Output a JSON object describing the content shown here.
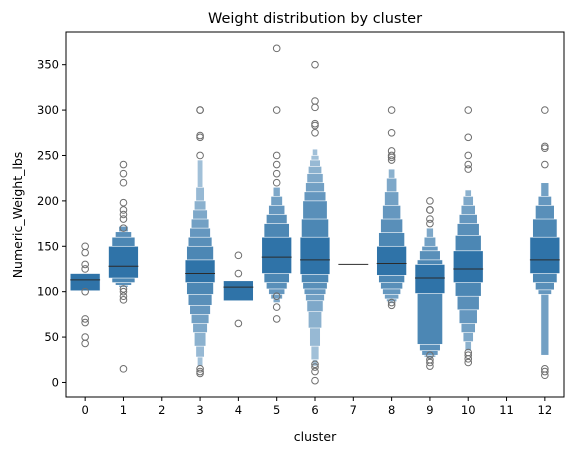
{
  "chart_data": {
    "type": "boxen",
    "title": "Weight distribution by cluster",
    "xlabel": "cluster",
    "ylabel": "Numeric_Weight_lbs",
    "categories": [
      "0",
      "1",
      "2",
      "3",
      "4",
      "5",
      "6",
      "7",
      "8",
      "9",
      "10",
      "11",
      "12"
    ],
    "ylim": [
      -16,
      386
    ],
    "yticks": [
      0,
      50,
      100,
      150,
      200,
      250,
      300,
      350
    ],
    "grid": false,
    "color": "#2f73a8",
    "outlier_color": "#6e6e6e",
    "series": [
      {
        "category": "0",
        "median": 113,
        "levels": [
          [
            101,
            120
          ]
        ],
        "outliers": [
          150,
          143,
          130,
          125,
          100,
          70,
          66,
          50,
          43
        ]
      },
      {
        "category": "1",
        "median": 128,
        "levels": [
          [
            115,
            150
          ],
          [
            110,
            160
          ],
          [
            107,
            166
          ],
          [
            105,
            172
          ]
        ],
        "outliers": [
          240,
          230,
          220,
          198,
          190,
          185,
          180,
          170,
          103,
          100,
          95,
          91,
          15
        ]
      },
      {
        "category": "2",
        "median": null,
        "levels": [],
        "outliers": []
      },
      {
        "category": "3",
        "median": 120,
        "levels": [
          [
            110,
            135
          ],
          [
            97,
            150
          ],
          [
            85,
            160
          ],
          [
            75,
            170
          ],
          [
            65,
            180
          ],
          [
            55,
            190
          ],
          [
            40,
            200
          ],
          [
            28,
            215
          ],
          [
            18,
            245
          ]
        ],
        "outliers": [
          300,
          300,
          272,
          270,
          250,
          15,
          12,
          10
        ]
      },
      {
        "category": "4",
        "median": 105,
        "levels": [
          [
            90,
            112
          ]
        ],
        "outliers": [
          140,
          120,
          65
        ]
      },
      {
        "category": "5",
        "median": 138,
        "levels": [
          [
            120,
            160
          ],
          [
            110,
            175
          ],
          [
            103,
            185
          ],
          [
            97,
            195
          ],
          [
            92,
            205
          ],
          [
            88,
            215
          ]
        ],
        "outliers": [
          368,
          300,
          250,
          240,
          230,
          220,
          95,
          83,
          70
        ]
      },
      {
        "category": "6",
        "median": 135,
        "levels": [
          [
            119,
            160
          ],
          [
            110,
            180
          ],
          [
            103,
            200
          ],
          [
            97,
            210
          ],
          [
            90,
            220
          ],
          [
            78,
            230
          ],
          [
            60,
            238
          ],
          [
            40,
            245
          ],
          [
            25,
            250
          ],
          [
            18,
            257
          ]
        ],
        "outliers": [
          350,
          310,
          303,
          285,
          283,
          275,
          20,
          17,
          12,
          2
        ]
      },
      {
        "category": "7",
        "median": 130,
        "levels": [],
        "outliers": []
      },
      {
        "category": "8",
        "median": 131,
        "levels": [
          [
            118,
            150
          ],
          [
            110,
            165
          ],
          [
            103,
            180
          ],
          [
            97,
            195
          ],
          [
            92,
            210
          ],
          [
            89,
            225
          ],
          [
            87,
            235
          ]
        ],
        "outliers": [
          300,
          275,
          255,
          250,
          248,
          245,
          88,
          85
        ]
      },
      {
        "category": "9",
        "median": 115,
        "levels": [
          [
            98,
            130
          ],
          [
            42,
            135
          ],
          [
            35,
            145
          ],
          [
            30,
            150
          ],
          [
            28,
            160
          ],
          [
            26,
            170
          ]
        ],
        "outliers": [
          200,
          190,
          190,
          180,
          175,
          30,
          25,
          22,
          18
        ]
      },
      {
        "category": "10",
        "median": 125,
        "levels": [
          [
            110,
            145
          ],
          [
            95,
            162
          ],
          [
            80,
            175
          ],
          [
            65,
            185
          ],
          [
            55,
            195
          ],
          [
            45,
            205
          ],
          [
            35,
            212
          ]
        ],
        "outliers": [
          300,
          270,
          250,
          240,
          235,
          33,
          30,
          26,
          22
        ]
      },
      {
        "category": "11",
        "median": null,
        "levels": [],
        "outliers": []
      },
      {
        "category": "12",
        "median": 135,
        "levels": [
          [
            120,
            160
          ],
          [
            110,
            180
          ],
          [
            102,
            195
          ],
          [
            97,
            205
          ],
          [
            30,
            220
          ]
        ],
        "outliers": [
          300,
          260,
          258,
          240,
          15,
          12,
          8
        ]
      }
    ]
  }
}
